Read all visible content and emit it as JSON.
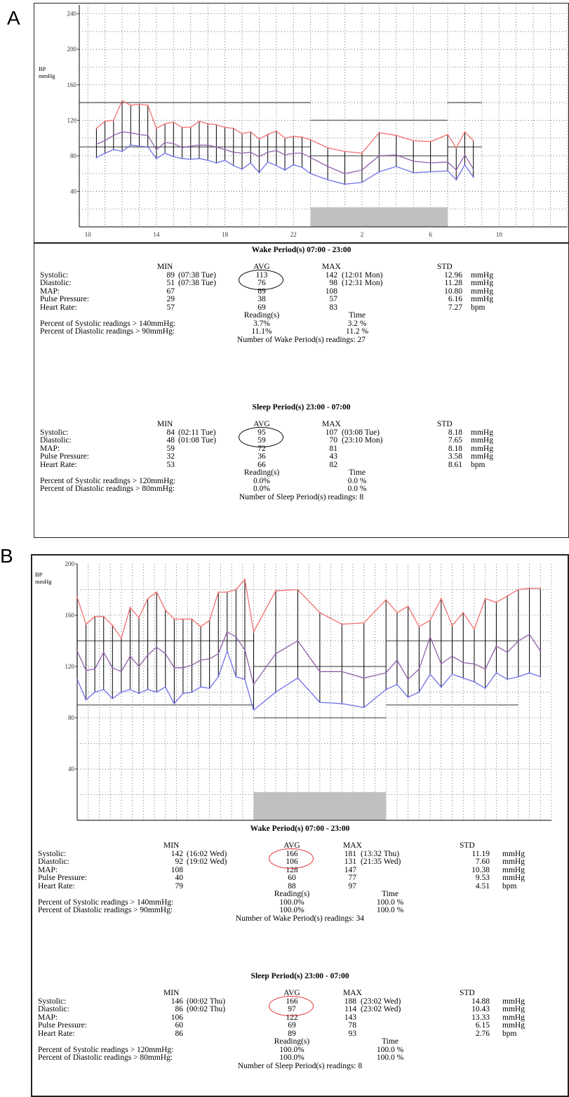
{
  "panels": [
    {
      "letter": "A",
      "chart_data": {
        "type": "line",
        "ylabel": "BP\nmmHg",
        "ylim": [
          0,
          250
        ],
        "yticks": [
          40,
          80,
          120,
          160,
          200,
          240
        ],
        "xticks": [
          "10",
          "14",
          "18",
          "22",
          "2",
          "6",
          "10"
        ],
        "xtick_hours": [
          10,
          14,
          18,
          22,
          26,
          30,
          34
        ],
        "xlim_hours": [
          9.5,
          38
        ],
        "sleep_shade_hours": [
          23,
          31
        ],
        "sleep_shade_height": 22,
        "thresholds": [
          {
            "from": 9.5,
            "to": 23,
            "values": [
              140,
              90
            ]
          },
          {
            "from": 23,
            "to": 31,
            "values": [
              120,
              80
            ]
          },
          {
            "from": 31,
            "to": 33,
            "values": [
              140,
              90
            ]
          }
        ],
        "x": [
          10.5,
          11,
          11.5,
          12,
          12.5,
          13,
          13.5,
          14,
          14.5,
          15,
          15.5,
          16,
          16.5,
          17,
          17.5,
          18,
          18.5,
          19,
          19.5,
          20,
          20.5,
          21,
          21.5,
          22,
          22.5,
          23,
          24,
          25,
          26,
          27,
          28,
          29,
          30,
          31,
          31.5,
          32,
          32.5
        ],
        "series": [
          {
            "name": "",
            "color": "#f07070",
            "values": [
              111,
              119,
              120,
              142,
              137,
              138,
              137,
              111,
              116,
              118,
              112,
              112,
              119,
              116,
              115,
              112,
              111,
              105,
              107,
              99,
              104,
              108,
              100,
              102,
              101,
              98,
              89,
              85,
              83,
              106,
              103,
              97,
              96,
              104,
              89,
              107,
              97
            ]
          },
          {
            "name": "",
            "color": "#9060a8",
            "values": [
              93,
              97,
              103,
              107,
              106,
              104,
              103,
              87,
              95,
              94,
              89,
              91,
              92,
              92,
              90,
              87,
              84,
              83,
              84,
              79,
              84,
              86,
              81,
              83,
              83,
              78,
              68,
              60,
              64,
              80,
              81,
              74,
              72,
              73,
              64,
              81,
              65
            ]
          },
          {
            "name": "",
            "color": "#7070e8",
            "values": [
              78,
              83,
              87,
              85,
              92,
              91,
              90,
              77,
              83,
              79,
              77,
              76,
              77,
              75,
              72,
              75,
              69,
              65,
              72,
              61,
              73,
              69,
              64,
              70,
              67,
              60,
              53,
              48,
              50,
              62,
              68,
              61,
              62,
              63,
              53,
              70,
              56
            ]
          }
        ]
      },
      "stats": {
        "wake_title": "Wake Period(s) 07:00 - 23:00",
        "sleep_title": "Sleep Period(s) 23:00 - 07:00",
        "header": {
          "min": "MIN",
          "avg": "AVG",
          "max": "MAX",
          "std": "STD"
        },
        "wake_rows": [
          {
            "label": "Systolic:",
            "min": "89",
            "min_t": "(07:38 Tue)",
            "avg": "113",
            "max": "142",
            "max_t": "(12:01 Mon)",
            "std": "12.96",
            "unit": "mmHg"
          },
          {
            "label": "Diastolic:",
            "min": "51",
            "min_t": "(07:38 Tue)",
            "avg": "76",
            "max": "98",
            "max_t": "(12:31 Mon)",
            "std": "11.28",
            "unit": "mmHg"
          },
          {
            "label": "MAP:",
            "min": "67",
            "min_t": "",
            "avg": "89",
            "max": "108",
            "max_t": "",
            "std": "10.80",
            "unit": "mmHg"
          },
          {
            "label": "Pulse Pressure:",
            "min": "29",
            "min_t": "",
            "avg": "38",
            "max": "57",
            "max_t": "",
            "std": "6.16",
            "unit": "mmHg"
          },
          {
            "label": "Heart Rate:",
            "min": "57",
            "min_t": "",
            "avg": "69",
            "max": "83",
            "max_t": "",
            "std": "7.27",
            "unit": "bpm"
          }
        ],
        "wake_reading_hdr": "Reading(s)",
        "wake_time_hdr": "Time",
        "wake_pct": [
          {
            "label": "Percent of Systolic readings > 140mmHg:",
            "reading": "3.7%",
            "time": "3.2 %"
          },
          {
            "label": "Percent of Diastolic readings > 90mmHg:",
            "reading": "11.1%",
            "time": "11.2 %"
          }
        ],
        "wake_count": "Number of Wake Period(s) readings: 27",
        "sleep_rows": [
          {
            "label": "Systolic:",
            "min": "84",
            "min_t": "(02:11 Tue)",
            "avg": "95",
            "max": "107",
            "max_t": "(03:08 Tue)",
            "std": "8.18",
            "unit": "mmHg"
          },
          {
            "label": "Diastolic:",
            "min": "48",
            "min_t": "(01:08 Tue)",
            "avg": "59",
            "max": "70",
            "max_t": "(23:10 Mon)",
            "std": "7.65",
            "unit": "mmHg"
          },
          {
            "label": "MAP:",
            "min": "59",
            "min_t": "",
            "avg": "72",
            "max": "81",
            "max_t": "",
            "std": "8.18",
            "unit": "mmHg"
          },
          {
            "label": "Pulse Pressure:",
            "min": "32",
            "min_t": "",
            "avg": "36",
            "max": "43",
            "max_t": "",
            "std": "3.58",
            "unit": "mmHg"
          },
          {
            "label": "Heart Rate:",
            "min": "53",
            "min_t": "",
            "avg": "66",
            "max": "82",
            "max_t": "",
            "std": "8.61",
            "unit": "bpm"
          }
        ],
        "sleep_reading_hdr": "Reading(s)",
        "sleep_time_hdr": "Time",
        "sleep_pct": [
          {
            "label": "Percent of Systolic readings > 120mmHg:",
            "reading": "0.0%",
            "time": "0.0 %"
          },
          {
            "label": "Percent of Diastolic readings > 80mmHg:",
            "reading": "0.0%",
            "time": "0.0 %"
          }
        ],
        "sleep_count": "Number of Sleep Period(s) readings: 8"
      }
    },
    {
      "letter": "B",
      "chart_data": {
        "type": "line",
        "ylabel": "BP\nmmHg",
        "ylim": [
          0,
          200
        ],
        "yticks": [
          40,
          80,
          120,
          160,
          200
        ],
        "xticks": [],
        "xlim_hours": [
          0,
          43
        ],
        "sleep_shade_hours": [
          16,
          28
        ],
        "sleep_shade_height": 22,
        "thresholds": [
          {
            "from": 0,
            "to": 16,
            "values": [
              140,
              90
            ]
          },
          {
            "from": 16,
            "to": 28,
            "values": [
              120,
              80
            ]
          },
          {
            "from": 28,
            "to": 40,
            "values": [
              140,
              90
            ]
          }
        ],
        "x": [
          0,
          0.8,
          1.6,
          2.4,
          3.2,
          4,
          4.8,
          5.6,
          6.4,
          7.2,
          8,
          8.8,
          9.6,
          10.4,
          11.2,
          12,
          12.8,
          13.6,
          14.4,
          15.2,
          16,
          18,
          20,
          22,
          24,
          26,
          28,
          29,
          30,
          31,
          32,
          33,
          34,
          35,
          36,
          37,
          38,
          39,
          40,
          41,
          42
        ],
        "series": [
          {
            "name": "",
            "color": "#f07070",
            "values": [
              174,
              153,
              159,
              159,
              152,
              142,
              166,
              158,
              173,
              178,
              164,
              157,
              157,
              157,
              151,
              156,
              178,
              178,
              180,
              188,
              147,
              179,
              180,
              162,
              153,
              154,
              172,
              162,
              167,
              151,
              156,
              173,
              152,
              162,
              149,
              173,
              170,
              175,
              180,
              181,
              181
            ]
          },
          {
            "name": "",
            "color": "#9060a8",
            "values": [
              132,
              117,
              118,
              131,
              119,
              116,
              128,
              120,
              129,
              135,
              130,
              119,
              119,
              121,
              125,
              126,
              130,
              147,
              143,
              133,
              106,
              130,
              140,
              116,
              116,
              111,
              115,
              125,
              110,
              118,
              143,
              122,
              128,
              123,
              122,
              118,
              136,
              131,
              140,
              145,
              132
            ]
          },
          {
            "name": "",
            "color": "#7070e8",
            "values": [
              110,
              94,
              100,
              102,
              95,
              100,
              102,
              99,
              102,
              100,
              104,
              91,
              99,
              100,
              104,
              103,
              112,
              132,
              112,
              110,
              86,
              100,
              111,
              92,
              91,
              88,
              102,
              106,
              96,
              100,
              114,
              104,
              114,
              111,
              108,
              103,
              115,
              110,
              112,
              115,
              112
            ]
          }
        ]
      },
      "stats": {
        "wake_title": "Wake Period(s) 07:00 - 23:00",
        "sleep_title": "Sleep Period(s) 23:00 - 07:00",
        "header": {
          "min": "MIN",
          "avg": "AVG",
          "max": "MAX",
          "std": "STD"
        },
        "wake_rows": [
          {
            "label": "Systolic:",
            "min": "142",
            "min_t": "(16:02 Wed)",
            "avg": "166",
            "max": "181",
            "max_t": "(13:32 Thu)",
            "std": "11.19",
            "unit": "mmHg"
          },
          {
            "label": "Diastolic:",
            "min": "92",
            "min_t": "(19:02 Wed)",
            "avg": "106",
            "max": "131",
            "max_t": "(21:35 Wed)",
            "std": "7.60",
            "unit": "mmHg"
          },
          {
            "label": "MAP:",
            "min": "108",
            "min_t": "",
            "avg": "128",
            "max": "147",
            "max_t": "",
            "std": "10.38",
            "unit": "mmHg"
          },
          {
            "label": "Pulse Pressure:",
            "min": "40",
            "min_t": "",
            "avg": "60",
            "max": "77",
            "max_t": "",
            "std": "9.53",
            "unit": "mmHg"
          },
          {
            "label": "Heart Rate:",
            "min": "79",
            "min_t": "",
            "avg": "88",
            "max": "97",
            "max_t": "",
            "std": "4.51",
            "unit": "bpm"
          }
        ],
        "wake_reading_hdr": "Reading(s)",
        "wake_time_hdr": "Time",
        "wake_pct": [
          {
            "label": "Percent of Systolic readings > 140mmHg:",
            "reading": "100.0%",
            "time": "100.0 %"
          },
          {
            "label": "Percent of Diastolic readings > 90mmHg:",
            "reading": "100.0%",
            "time": "100.0 %"
          }
        ],
        "wake_count": "Number of Wake Period(s) readings: 34",
        "sleep_rows": [
          {
            "label": "Systolic:",
            "min": "146",
            "min_t": "(00:02 Thu)",
            "avg": "166",
            "max": "188",
            "max_t": "(23:02 Wed)",
            "std": "14.88",
            "unit": "mmHg"
          },
          {
            "label": "Diastolic:",
            "min": "86",
            "min_t": "(00:02 Thu)",
            "avg": "97",
            "max": "114",
            "max_t": "(23:02 Wed)",
            "std": "10.43",
            "unit": "mmHg"
          },
          {
            "label": "MAP:",
            "min": "106",
            "min_t": "",
            "avg": "122",
            "max": "143",
            "max_t": "",
            "std": "13.33",
            "unit": "mmHg"
          },
          {
            "label": "Pulse Pressure:",
            "min": "60",
            "min_t": "",
            "avg": "69",
            "max": "78",
            "max_t": "",
            "std": "6.15",
            "unit": "mmHg"
          },
          {
            "label": "Heart Rate:",
            "min": "86",
            "min_t": "",
            "avg": "89",
            "max": "93",
            "max_t": "",
            "std": "2.76",
            "unit": "bpm"
          }
        ],
        "sleep_reading_hdr": "Reading(s)",
        "sleep_time_hdr": "Time",
        "sleep_pct": [
          {
            "label": "Percent of Systolic readings > 120mmHg:",
            "reading": "100.0%",
            "time": "100.0 %"
          },
          {
            "label": "Percent of Diastolic readings > 80mmHg:",
            "reading": "100.0%",
            "time": "100.0 %"
          }
        ],
        "sleep_count": "Number of Sleep Period(s) readings: 8"
      }
    }
  ],
  "colors": {
    "systolic": "#f07070",
    "map": "#9060a8",
    "diastolic": "#7070e8",
    "threshold": "#888888",
    "shade": "#c0c0c0",
    "highlight_a": "#000000",
    "highlight_b": "#e03030"
  }
}
